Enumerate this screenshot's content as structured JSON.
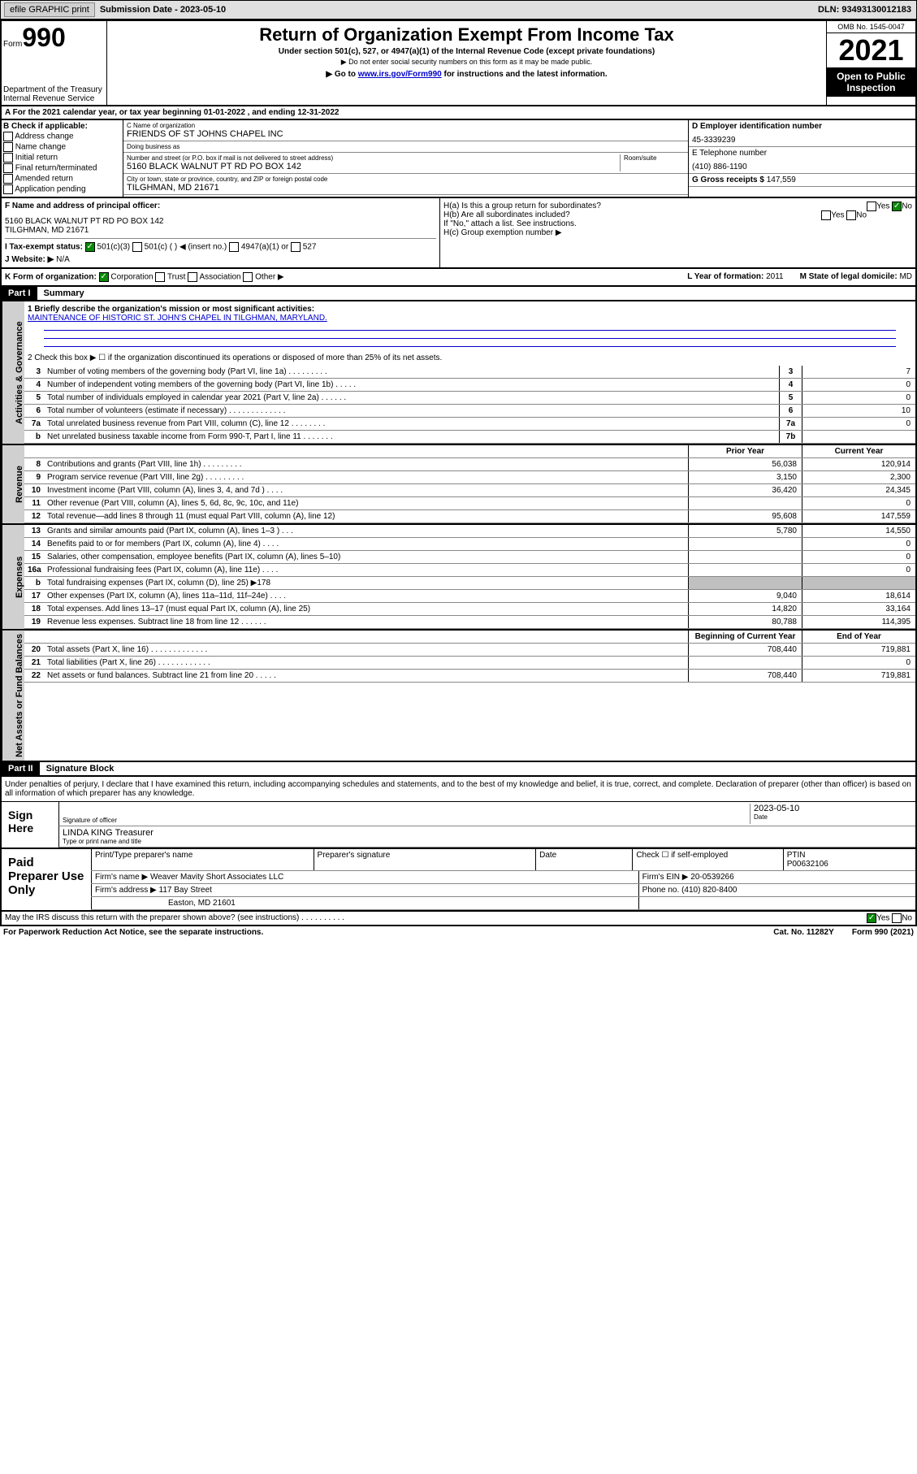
{
  "top_bar": {
    "efile": "efile GRAPHIC print",
    "submission": "Submission Date - 2023-05-10",
    "dln": "DLN: 93493130012183"
  },
  "header": {
    "form_label": "Form",
    "form_num": "990",
    "title": "Return of Organization Exempt From Income Tax",
    "subtitle": "Under section 501(c), 527, or 4947(a)(1) of the Internal Revenue Code (except private foundations)",
    "note1": "▶ Do not enter social security numbers on this form as it may be made public.",
    "goto_pre": "▶ Go to ",
    "goto_link": "www.irs.gov/Form990",
    "goto_post": " for instructions and the latest information.",
    "dept": "Department of the Treasury Internal Revenue Service",
    "omb": "OMB No. 1545-0047",
    "year": "2021",
    "public": "Open to Public Inspection"
  },
  "sec_a": "A For the 2021 calendar year, or tax year beginning 01-01-2022    , and ending 12-31-2022",
  "col_b": {
    "title": "B Check if applicable:",
    "items": [
      "Address change",
      "Name change",
      "Initial return",
      "Final return/terminated",
      "Amended return",
      "Application pending"
    ]
  },
  "col_c": {
    "name_lbl": "C Name of organization",
    "name": "FRIENDS OF ST JOHNS CHAPEL INC",
    "dba_lbl": "Doing business as",
    "dba": "",
    "addr_lbl": "Number and street (or P.O. box if mail is not delivered to street address)",
    "room_lbl": "Room/suite",
    "addr": "5160 BLACK WALNUT PT RD PO BOX 142",
    "city_lbl": "City or town, state or province, country, and ZIP or foreign postal code",
    "city": "TILGHMAN, MD  21671"
  },
  "col_d": {
    "ein_lbl": "D Employer identification number",
    "ein": "45-3339239",
    "tel_lbl": "E Telephone number",
    "tel": "(410) 886-1190",
    "gross_lbl": "G Gross receipts $",
    "gross": "147,559"
  },
  "block_f": {
    "lbl": "F Name and address of principal officer:",
    "line1": "5160 BLACK WALNUT PT RD PO BOX 142",
    "line2": "TILGHMAN, MD  21671"
  },
  "block_h": {
    "a": "H(a)  Is this a group return for subordinates?",
    "b": "H(b)  Are all subordinates included?",
    "note": "If \"No,\" attach a list. See instructions.",
    "c": "H(c)  Group exemption number ▶",
    "yes": "Yes",
    "no": "No"
  },
  "block_i": {
    "lbl": "I   Tax-exempt status:",
    "opts": [
      "501(c)(3)",
      "501(c) (   ) ◀ (insert no.)",
      "4947(a)(1) or",
      "527"
    ]
  },
  "block_j": {
    "lbl": "J   Website: ▶",
    "val": "N/A"
  },
  "block_k": {
    "lbl": "K Form of organization:",
    "opts": [
      "Corporation",
      "Trust",
      "Association",
      "Other ▶"
    ],
    "year_lbl": "L Year of formation:",
    "year": "2011",
    "state_lbl": "M State of legal domicile:",
    "state": "MD"
  },
  "part1": {
    "header": "Part I",
    "title": "Summary"
  },
  "mission": {
    "lbl": "1  Briefly describe the organization's mission or most significant activities:",
    "text": "MAINTENANCE OF HISTORIC ST. JOHN'S CHAPEL IN TILGHMAN, MARYLAND."
  },
  "line2": "2   Check this box ▶ ☐  if the organization discontinued its operations or disposed of more than 25% of its net assets.",
  "gov_rows": [
    {
      "n": "3",
      "d": "Number of voting members of the governing body (Part VI, line 1a)   .   .   .   .   .   .   .   .   .",
      "b": "3",
      "v": "7"
    },
    {
      "n": "4",
      "d": "Number of independent voting members of the governing body (Part VI, line 1b)   .   .   .   .   .",
      "b": "4",
      "v": "0"
    },
    {
      "n": "5",
      "d": "Total number of individuals employed in calendar year 2021 (Part V, line 2a)   .   .   .   .   .   .",
      "b": "5",
      "v": "0"
    },
    {
      "n": "6",
      "d": "Total number of volunteers (estimate if necessary)   .   .   .   .   .   .   .   .   .   .   .   .   .",
      "b": "6",
      "v": "10"
    },
    {
      "n": "7a",
      "d": "Total unrelated business revenue from Part VIII, column (C), line 12   .   .   .   .   .   .   .   .",
      "b": "7a",
      "v": "0"
    },
    {
      "n": "b",
      "d": "Net unrelated business taxable income from Form 990-T, Part I, line 11   .   .   .   .   .   .   .",
      "b": "7b",
      "v": ""
    }
  ],
  "rev_header": {
    "prior": "Prior Year",
    "current": "Current Year"
  },
  "rev_rows": [
    {
      "n": "8",
      "d": "Contributions and grants (Part VIII, line 1h)   .   .   .   .   .   .   .   .   .",
      "p": "56,038",
      "c": "120,914"
    },
    {
      "n": "9",
      "d": "Program service revenue (Part VIII, line 2g)   .   .   .   .   .   .   .   .   .",
      "p": "3,150",
      "c": "2,300"
    },
    {
      "n": "10",
      "d": "Investment income (Part VIII, column (A), lines 3, 4, and 7d )   .   .   .   .",
      "p": "36,420",
      "c": "24,345"
    },
    {
      "n": "11",
      "d": "Other revenue (Part VIII, column (A), lines 5, 6d, 8c, 9c, 10c, and 11e)",
      "p": "",
      "c": "0"
    },
    {
      "n": "12",
      "d": "Total revenue—add lines 8 through 11 (must equal Part VIII, column (A), line 12)",
      "p": "95,608",
      "c": "147,559"
    }
  ],
  "exp_rows": [
    {
      "n": "13",
      "d": "Grants and similar amounts paid (Part IX, column (A), lines 1–3 )   .   .   .",
      "p": "5,780",
      "c": "14,550"
    },
    {
      "n": "14",
      "d": "Benefits paid to or for members (Part IX, column (A), line 4)   .   .   .   .",
      "p": "",
      "c": "0"
    },
    {
      "n": "15",
      "d": "Salaries, other compensation, employee benefits (Part IX, column (A), lines 5–10)",
      "p": "",
      "c": "0"
    },
    {
      "n": "16a",
      "d": "Professional fundraising fees (Part IX, column (A), line 11e)   .   .   .   .",
      "p": "",
      "c": "0"
    },
    {
      "n": "b",
      "d": "Total fundraising expenses (Part IX, column (D), line 25) ▶178",
      "p": "gray",
      "c": "gray"
    },
    {
      "n": "17",
      "d": "Other expenses (Part IX, column (A), lines 11a–11d, 11f–24e)   .   .   .   .",
      "p": "9,040",
      "c": "18,614"
    },
    {
      "n": "18",
      "d": "Total expenses. Add lines 13–17 (must equal Part IX, column (A), line 25)",
      "p": "14,820",
      "c": "33,164"
    },
    {
      "n": "19",
      "d": "Revenue less expenses. Subtract line 18 from line 12   .   .   .   .   .   .",
      "p": "80,788",
      "c": "114,395"
    }
  ],
  "net_header": {
    "begin": "Beginning of Current Year",
    "end": "End of Year"
  },
  "net_rows": [
    {
      "n": "20",
      "d": "Total assets (Part X, line 16)   .   .   .   .   .   .   .   .   .   .   .   .   .",
      "p": "708,440",
      "c": "719,881"
    },
    {
      "n": "21",
      "d": "Total liabilities (Part X, line 26)   .   .   .   .   .   .   .   .   .   .   .   .",
      "p": "",
      "c": "0"
    },
    {
      "n": "22",
      "d": "Net assets or fund balances. Subtract line 21 from line 20   .   .   .   .   .",
      "p": "708,440",
      "c": "719,881"
    }
  ],
  "part2": {
    "header": "Part II",
    "title": "Signature Block"
  },
  "declaration": "Under penalties of perjury, I declare that I have examined this return, including accompanying schedules and statements, and to the best of my knowledge and belief, it is true, correct, and complete. Declaration of preparer (other than officer) is based on all information of which preparer has any knowledge.",
  "sign": {
    "here": "Sign Here",
    "sig_lbl": "Signature of officer",
    "date_lbl": "Date",
    "date": "2023-05-10",
    "name": "LINDA KING Treasurer",
    "name_lbl": "Type or print name and title"
  },
  "paid": {
    "label": "Paid Preparer Use Only",
    "h": [
      "Print/Type preparer's name",
      "Preparer's signature",
      "Date"
    ],
    "check": "Check ☐ if self-employed",
    "ptin_lbl": "PTIN",
    "ptin": "P00632106",
    "firm_name_lbl": "Firm's name    ▶",
    "firm_name": "Weaver Mavity Short Associates LLC",
    "ein_lbl": "Firm's EIN ▶",
    "ein": "20-0539266",
    "firm_addr_lbl": "Firm's address ▶",
    "firm_addr": "117 Bay Street",
    "firm_city": "Easton, MD  21601",
    "phone_lbl": "Phone no.",
    "phone": "(410) 820-8400"
  },
  "discuss": "May the IRS discuss this return with the preparer shown above? (see instructions)   .   .   .   .   .   .   .   .   .   .",
  "footer": {
    "left": "For Paperwork Reduction Act Notice, see the separate instructions.",
    "mid": "Cat. No. 11282Y",
    "right": "Form 990 (2021)"
  },
  "side_labels": {
    "gov": "Activities & Governance",
    "rev": "Revenue",
    "exp": "Expenses",
    "net": "Net Assets or Fund Balances"
  }
}
